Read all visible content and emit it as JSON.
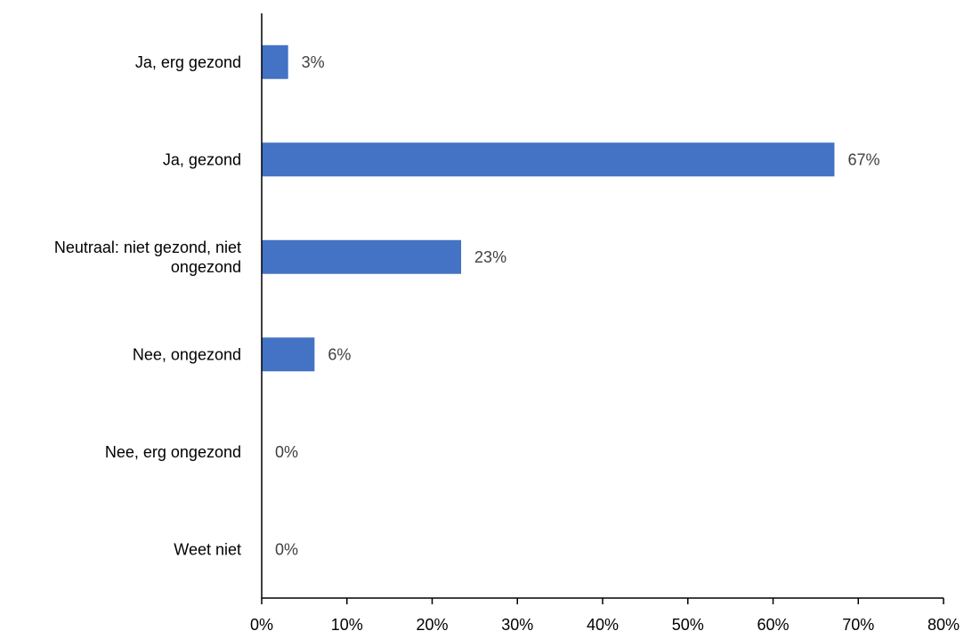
{
  "chart_data": {
    "type": "bar",
    "orientation": "horizontal",
    "categories": [
      [
        "Ja, erg gezond"
      ],
      [
        "Ja, gezond"
      ],
      [
        "Neutraal: niet gezond, niet",
        "ongezond"
      ],
      [
        "Nee, ongezond"
      ],
      [
        "Nee, erg ongezond"
      ],
      [
        "Weet niet"
      ]
    ],
    "values": [
      3.1,
      67.2,
      23.4,
      6.2,
      0,
      0
    ],
    "data_labels": [
      "3%",
      "67%",
      "23%",
      "6%",
      "0%",
      "0%"
    ],
    "x_ticks": [
      "0%",
      "10%",
      "20%",
      "30%",
      "40%",
      "50%",
      "60%",
      "70%",
      "80%"
    ],
    "xlim": [
      0,
      80
    ],
    "grid": false,
    "legend": "none",
    "bar_color": "#4472C4",
    "axis_color": "#000000",
    "label_color": "#404040"
  }
}
